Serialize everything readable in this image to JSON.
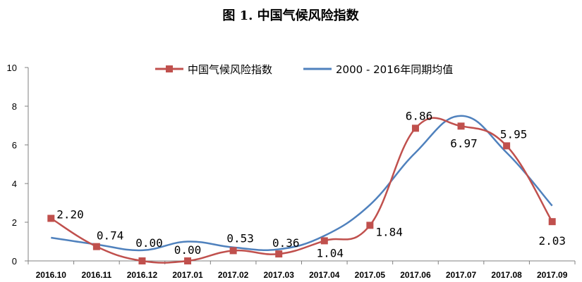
{
  "chart_data": {
    "type": "line",
    "title": "图 1.  中国气候风险指数",
    "categories": [
      "2016.10",
      "2016.11",
      "2016.12",
      "2017.01",
      "2017.02",
      "2017.03",
      "2017.04",
      "2017.05",
      "2017.06",
      "2017.07",
      "2017.08",
      "2017.09"
    ],
    "series": [
      {
        "name": "中国气候风险指数",
        "color": "#C0504D",
        "marker": "square",
        "values": [
          2.2,
          0.74,
          0.0,
          0.0,
          0.53,
          0.36,
          1.04,
          1.84,
          6.86,
          6.97,
          5.95,
          2.03
        ],
        "data_labels": [
          "2.20",
          "0.74",
          "0.00",
          "0.00",
          "0.53",
          "0.36",
          "1.04",
          "1.84",
          "6.86",
          "6.97",
          "5.95",
          "2.03"
        ]
      },
      {
        "name": "2000 - 2016年同期均值",
        "color": "#4F81BD",
        "marker": "none",
        "values": [
          1.2,
          0.85,
          0.55,
          1.0,
          0.7,
          0.6,
          1.3,
          2.9,
          5.6,
          7.5,
          5.6,
          2.85
        ]
      }
    ],
    "xlabel": "",
    "ylabel": "",
    "ylim": [
      0,
      10
    ],
    "yticks": [
      "0",
      "2",
      "4",
      "6",
      "8",
      "10"
    ],
    "grid": false,
    "legend_position": "top-center"
  }
}
